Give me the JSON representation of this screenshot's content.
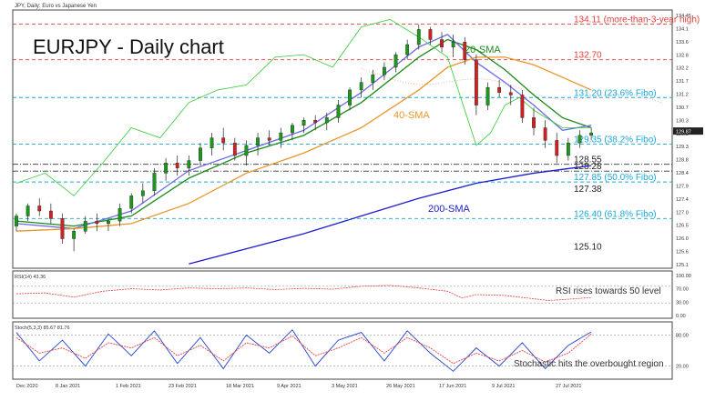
{
  "header": {
    "symbol_line": "JPY, Daily: Euro vs Japanese Yen"
  },
  "chart_data": [
    {
      "type": "line",
      "panel": "price",
      "title": "EURJPY - Daily chart",
      "ylim": [
        124.5,
        134.6
      ],
      "y_ticks": [
        "134.45",
        "134.1",
        "133.6",
        "132.8",
        "132.2",
        "131.7",
        "131.2",
        "130.7",
        "130.3",
        "129.8",
        "129.3",
        "128.8",
        "128.4",
        "127.9",
        "127.4",
        "127.0",
        "126.5",
        "126.0",
        "125.6",
        "125.1"
      ],
      "x_ticks": [
        "Dec 2020",
        "8 Jan 2021",
        "1 Feb 2021",
        "23 Feb 2021",
        "18 Mar 2021",
        "9 Apr 2021",
        "3 May 2021",
        "26 May 2021",
        "17 Jun 2021",
        "9 Jul 2021",
        "27 Jul 2021"
      ],
      "x_range_days": [
        0,
        225
      ],
      "candles": [
        [
          0,
          126.1,
          126.6,
          125.9,
          126.5
        ],
        [
          4,
          126.5,
          127.0,
          126.3,
          126.9
        ],
        [
          8,
          126.9,
          127.2,
          126.5,
          126.7
        ],
        [
          12,
          126.7,
          127.0,
          126.2,
          126.4
        ],
        [
          16,
          126.4,
          126.6,
          125.4,
          125.6
        ],
        [
          20,
          125.6,
          126.0,
          125.1,
          125.9
        ],
        [
          24,
          125.9,
          126.5,
          125.8,
          126.3
        ],
        [
          28,
          126.3,
          126.6,
          125.9,
          126.2
        ],
        [
          32,
          126.2,
          126.4,
          125.9,
          126.3
        ],
        [
          36,
          126.3,
          127.0,
          126.1,
          126.8
        ],
        [
          40,
          126.8,
          127.4,
          126.6,
          127.3
        ],
        [
          44,
          127.3,
          127.8,
          127.0,
          127.5
        ],
        [
          48,
          127.5,
          128.4,
          127.3,
          128.2
        ],
        [
          52,
          128.2,
          128.8,
          127.9,
          128.6
        ],
        [
          56,
          128.6,
          128.9,
          128.1,
          128.4
        ],
        [
          60,
          128.4,
          128.9,
          128.1,
          128.7
        ],
        [
          64,
          128.7,
          129.4,
          128.5,
          129.2
        ],
        [
          68,
          129.2,
          129.8,
          128.9,
          129.6
        ],
        [
          72,
          129.6,
          130.0,
          129.1,
          129.4
        ],
        [
          76,
          129.4,
          129.6,
          128.7,
          128.9
        ],
        [
          80,
          128.9,
          129.5,
          128.5,
          129.3
        ],
        [
          84,
          129.3,
          129.8,
          128.9,
          129.6
        ],
        [
          88,
          129.6,
          129.9,
          129.3,
          129.5
        ],
        [
          92,
          129.5,
          130.0,
          129.2,
          129.8
        ],
        [
          96,
          129.8,
          130.2,
          129.5,
          130.1
        ],
        [
          100,
          130.1,
          130.4,
          129.8,
          130.3
        ],
        [
          104,
          130.3,
          130.5,
          129.9,
          130.2
        ],
        [
          108,
          130.2,
          130.6,
          129.9,
          130.4
        ],
        [
          112,
          130.4,
          131.1,
          130.2,
          130.9
        ],
        [
          116,
          130.9,
          131.6,
          130.7,
          131.5
        ],
        [
          120,
          131.5,
          132.0,
          131.2,
          131.8
        ],
        [
          124,
          131.8,
          132.3,
          131.5,
          132.1
        ],
        [
          128,
          132.1,
          132.6,
          131.9,
          132.4
        ],
        [
          132,
          132.4,
          133.0,
          132.2,
          132.9
        ],
        [
          136,
          132.9,
          133.5,
          132.7,
          133.3
        ],
        [
          140,
          133.3,
          134.1,
          133.1,
          133.9
        ],
        [
          144,
          133.9,
          134.0,
          133.3,
          133.5
        ],
        [
          148,
          133.5,
          133.8,
          133.0,
          133.2
        ],
        [
          152,
          133.2,
          133.7,
          132.8,
          133.4
        ],
        [
          156,
          133.4,
          133.6,
          132.5,
          132.7
        ],
        [
          160,
          132.7,
          132.9,
          130.5,
          130.9
        ],
        [
          164,
          130.9,
          131.8,
          130.7,
          131.6
        ],
        [
          168,
          131.6,
          131.9,
          131.2,
          131.4
        ],
        [
          172,
          131.4,
          131.7,
          130.9,
          131.3
        ],
        [
          176,
          131.3,
          131.5,
          130.2,
          130.4
        ],
        [
          180,
          130.4,
          130.8,
          129.7,
          130.0
        ],
        [
          184,
          130.0,
          130.3,
          129.2,
          129.5
        ],
        [
          188,
          129.5,
          129.8,
          128.6,
          128.9
        ],
        [
          192,
          128.9,
          129.6,
          128.7,
          129.4
        ],
        [
          196,
          129.4,
          129.9,
          129.2,
          129.7
        ],
        [
          200,
          129.7,
          130.0,
          129.5,
          129.8
        ]
      ],
      "series": [
        {
          "name": "20-SMA",
          "color": "#1a8a1a",
          "x": [
            0,
            20,
            40,
            60,
            80,
            100,
            120,
            140,
            150,
            160,
            170,
            180,
            190,
            200
          ],
          "values": [
            126.3,
            126.1,
            126.5,
            128.0,
            129.0,
            129.7,
            131.0,
            132.8,
            133.5,
            133.1,
            132.3,
            131.3,
            130.4,
            130.0
          ]
        },
        {
          "name": "",
          "color": "#6a6ae8",
          "x": [
            0,
            20,
            40,
            60,
            80,
            100,
            120,
            140,
            150,
            160,
            170,
            180,
            190,
            200
          ],
          "values": [
            126.2,
            126.0,
            126.7,
            128.3,
            129.1,
            129.9,
            131.4,
            133.2,
            133.7,
            132.6,
            131.8,
            130.9,
            129.9,
            130.1
          ]
        },
        {
          "name": "40-SMA",
          "color": "#e8962a",
          "x": [
            0,
            20,
            40,
            60,
            80,
            100,
            120,
            140,
            150,
            160,
            170,
            180,
            190,
            200
          ],
          "values": [
            125.9,
            126.0,
            126.2,
            127.0,
            128.2,
            129.0,
            130.0,
            131.5,
            132.4,
            132.8,
            132.8,
            132.5,
            132.0,
            131.5
          ]
        },
        {
          "name": "200-SMA",
          "color": "#1c1ccc",
          "x": [
            60,
            80,
            100,
            120,
            140,
            160,
            180,
            200
          ],
          "values": [
            124.6,
            125.2,
            125.8,
            126.5,
            127.2,
            127.8,
            128.2,
            128.5
          ]
        },
        {
          "name": "",
          "color": "#33cc33",
          "x": [
            0,
            10,
            20,
            30,
            40,
            50,
            60,
            70,
            80,
            90,
            100,
            110,
            120,
            130,
            140,
            150,
            160,
            165,
            170,
            175,
            180,
            190,
            200
          ],
          "values": [
            127.8,
            128.2,
            127.3,
            128.6,
            130.0,
            129.6,
            131.0,
            131.5,
            131.7,
            132.8,
            132.9,
            132.4,
            134.0,
            134.3,
            133.6,
            132.8,
            129.3,
            129.8,
            130.9,
            131.2,
            130.7,
            130.0,
            130.0
          ]
        }
      ],
      "levels": [
        {
          "label": "134.11 (more-than-3-year high)",
          "value": 134.11,
          "color": "#e0403a",
          "style": "dash"
        },
        {
          "label": "132.70",
          "value": 132.7,
          "color": "#e0403a",
          "style": "dash"
        },
        {
          "label": "131.20 (23.6% Fibo)",
          "value": 131.2,
          "color": "#1aa7d6",
          "style": "dash"
        },
        {
          "label": "129.35 (38.2% Fibo)",
          "value": 129.35,
          "color": "#1aa7d6",
          "style": "dash"
        },
        {
          "label": "128.55",
          "value": 128.55,
          "color": "#333333",
          "style": "dashdot"
        },
        {
          "label": "128.28",
          "value": 128.28,
          "color": "#333333",
          "style": "dashdot"
        },
        {
          "label": "127.85 (50.0% Fibo)",
          "value": 127.85,
          "color": "#1aa7d6",
          "style": "dash"
        },
        {
          "label": "127.38",
          "value": 127.38,
          "color": "#333333",
          "style": "none"
        },
        {
          "label": "126.40 (61.8% Fibo)",
          "value": 126.4,
          "color": "#1aa7d6",
          "style": "dash"
        },
        {
          "label": "125.10",
          "value": 125.1,
          "color": "#333333",
          "style": "none"
        }
      ],
      "annotations": [
        {
          "text": "20-SMA",
          "color": "#1a8a1a"
        },
        {
          "text": "40-SMA",
          "color": "#e8962a"
        },
        {
          "text": "200-SMA",
          "color": "#1c1ccc"
        }
      ],
      "price_tag": "129.87"
    },
    {
      "type": "line",
      "panel": "rsi",
      "label": "RSI(14) 43.36",
      "annotation": "RSI rises towards 50 level",
      "ylim": [
        0,
        100
      ],
      "y_ticks": [
        "100.00",
        "70.00",
        "30.00",
        "0.00"
      ],
      "x": [
        0,
        10,
        20,
        30,
        40,
        50,
        60,
        70,
        80,
        90,
        100,
        110,
        120,
        130,
        140,
        150,
        155,
        160,
        170,
        180,
        185,
        190,
        200
      ],
      "values": [
        52,
        54,
        44,
        58,
        64,
        61,
        66,
        64,
        66,
        62,
        65,
        63,
        70,
        72,
        66,
        58,
        42,
        50,
        48,
        40,
        36,
        38,
        43
      ]
    },
    {
      "type": "line",
      "panel": "stochastic",
      "label": "Stoch(5,3,3) 85.67 81.76",
      "annotation": "Stochastic hits the overbought region",
      "ylim": [
        0,
        100
      ],
      "y_ticks": [
        "80.00",
        "20.00"
      ],
      "series": [
        {
          "name": "",
          "color": "#2244cc",
          "x": [
            0,
            8,
            16,
            24,
            32,
            40,
            48,
            56,
            64,
            72,
            80,
            88,
            96,
            104,
            112,
            120,
            128,
            136,
            144,
            152,
            160,
            168,
            176,
            184,
            192,
            200
          ],
          "values": [
            85,
            30,
            70,
            20,
            82,
            40,
            88,
            25,
            75,
            15,
            80,
            45,
            90,
            20,
            70,
            85,
            30,
            88,
            45,
            10,
            55,
            20,
            65,
            15,
            60,
            86
          ]
        },
        {
          "name": "",
          "color": "#e8403a",
          "x": [
            0,
            8,
            16,
            24,
            32,
            40,
            48,
            56,
            64,
            72,
            80,
            88,
            96,
            104,
            112,
            120,
            128,
            136,
            144,
            152,
            160,
            168,
            176,
            184,
            192,
            200
          ],
          "values": [
            75,
            45,
            55,
            35,
            65,
            55,
            75,
            40,
            60,
            30,
            65,
            55,
            78,
            40,
            55,
            75,
            45,
            75,
            55,
            25,
            45,
            30,
            50,
            28,
            45,
            82
          ]
        }
      ]
    }
  ],
  "colors": {
    "up": "#1a9a1a",
    "down": "#d42020",
    "ichimoku_cloud": "#e6a0a0"
  }
}
